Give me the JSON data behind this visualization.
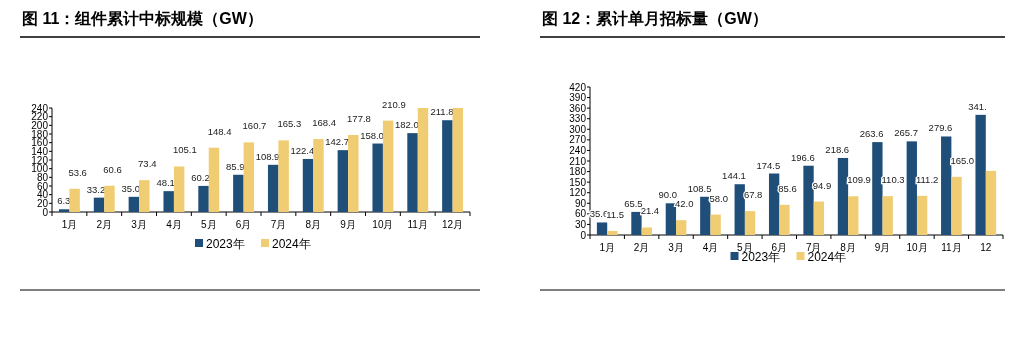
{
  "chart_data": [
    {
      "type": "bar",
      "title": "图 11：组件累计中标规模（GW）",
      "categories": [
        "1月",
        "2月",
        "3月",
        "4月",
        "5月",
        "6月",
        "7月",
        "8月",
        "9月",
        "10月",
        "11月",
        "12月"
      ],
      "series": [
        {
          "name": "2023年",
          "color": "#1f4e79",
          "values": [
            6.3,
            33.2,
            35.0,
            48.1,
            60.2,
            85.9,
            108.9,
            122.4,
            142.7,
            158.0,
            182.0,
            211.8
          ],
          "value_labels": [
            "6.3",
            "33.2",
            "35.0",
            "48.1",
            "60.2",
            "85.9",
            "108.9",
            "122.4",
            "142.7",
            "158.0",
            "182.0",
            "211.8"
          ]
        },
        {
          "name": "2024年",
          "color": "#f0cd72",
          "values": [
            53.6,
            60.6,
            73.4,
            105.1,
            148.4,
            160.7,
            165.3,
            168.4,
            177.8,
            210.9,
            240,
            240
          ],
          "value_labels": [
            "53.6",
            "60.6",
            "73.4",
            "105.1",
            "148.4",
            "160.7",
            "165.3",
            "168.4",
            "177.8",
            "210.9",
            null,
            null
          ]
        }
      ],
      "ylim": [
        0,
        240
      ],
      "yticks": [
        0,
        20,
        40,
        60,
        80,
        100,
        120,
        140,
        160,
        180,
        200,
        220,
        240
      ],
      "grid": false,
      "legend": "bottom"
    },
    {
      "type": "bar",
      "title": "图 12：累计单月招标量（GW）",
      "categories": [
        "1月",
        "2月",
        "3月",
        "4月",
        "5月",
        "6月",
        "7月",
        "8月",
        "9月",
        "10月",
        "11月",
        "12"
      ],
      "series": [
        {
          "name": "2023年",
          "color": "#1f4e79",
          "values": [
            35.6,
            65.5,
            90.0,
            108.5,
            144.1,
            174.5,
            196.6,
            218.6,
            263.6,
            265.7,
            279.6,
            341
          ],
          "value_labels": [
            "35.6",
            "65.5",
            "90.0",
            "108.5",
            "144.1",
            "174.5",
            "196.6",
            "218.6",
            "263.6",
            "265.7",
            "279.6",
            "341."
          ]
        },
        {
          "name": "2024年",
          "color": "#f0cd72",
          "values": [
            11.5,
            21.4,
            42.0,
            58.0,
            67.8,
            85.6,
            94.9,
            109.9,
            110.3,
            111.2,
            165.0,
            182
          ],
          "value_labels": [
            "11.5",
            "21.4",
            "42.0",
            "58.0",
            "67.8",
            "85.6",
            "94.9",
            "109.9",
            "110.3",
            "111.2",
            "165.0",
            null
          ]
        }
      ],
      "ylim": [
        0,
        420
      ],
      "yticks": [
        0,
        30,
        60,
        90,
        120,
        150,
        180,
        210,
        240,
        270,
        300,
        330,
        360,
        390,
        420
      ],
      "grid": false,
      "legend": "bottom"
    }
  ]
}
